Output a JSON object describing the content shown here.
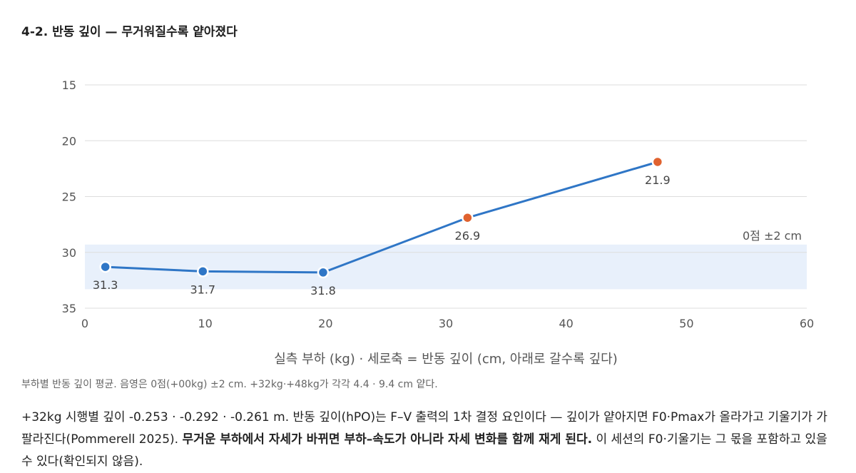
{
  "title": "4-2. 반동 깊이 — 무거워질수록 얕아졌다",
  "chart_data": {
    "type": "line",
    "xlabel": "실측 부하 (kg) · 세로축 = 반동 깊이 (cm, 아래로 갈수록 깊다)",
    "ylabel": "",
    "xlim": [
      0,
      60
    ],
    "ylim": [
      15,
      35
    ],
    "y_inverted": true,
    "x_ticks": [
      0,
      10,
      20,
      30,
      40,
      50,
      60
    ],
    "y_ticks": [
      15,
      20,
      25,
      30,
      35
    ],
    "grid": "horizontal",
    "band": {
      "label": "0점 ±2 cm",
      "y_range": [
        29.3,
        33.3
      ],
      "color": "#e8f0fb"
    },
    "line_color": "#2f76c6",
    "series": [
      {
        "points": [
          {
            "x": 1.7,
            "y": 31.3,
            "label": "31.3",
            "color": "#2f76c6"
          },
          {
            "x": 9.8,
            "y": 31.7,
            "label": "31.7",
            "color": "#2f76c6"
          },
          {
            "x": 19.8,
            "y": 31.8,
            "label": "31.8",
            "color": "#2f76c6"
          },
          {
            "x": 31.8,
            "y": 26.9,
            "label": "26.9",
            "color": "#e0622f"
          },
          {
            "x": 47.6,
            "y": 21.9,
            "label": "21.9",
            "color": "#e0622f"
          }
        ]
      }
    ]
  },
  "caption": "부하별 반동 깊이 평균. 음영은 0점(+00kg) ±2 cm. +32kg·+48kg가 각각 4.4 · 9.4 cm 얕다.",
  "body": {
    "part1": "+32kg 시행별 깊이 -0.253 · -0.292 · -0.261 m. 반동 깊이(hPO)는 F–V 출력의 1차 결정 요인이다 — 깊이가 얕아지면 F0·Pmax가 올라가고 기울기가 가팔라진다(Pommerell 2025). ",
    "bold": "무거운 부하에서 자세가 바뀌면 부하–속도가 아니라 자세 변화를 함께 재게 된다.",
    "part2": " 이 세션의 F0·기울기는 그 몫을 포함하고 있을 수 있다(확인되지 않음)."
  }
}
